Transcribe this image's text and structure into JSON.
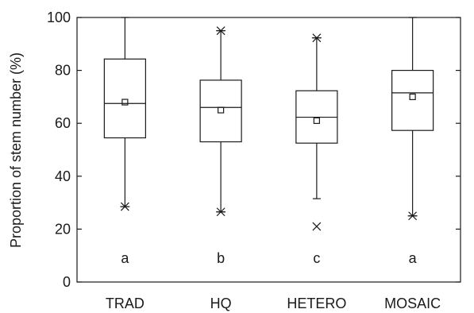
{
  "chart_data": {
    "type": "box",
    "ylabel": "Proportion of stem number (%)",
    "xlabel": "",
    "title": "",
    "ylim": [
      0,
      100
    ],
    "yticks": [
      "0",
      "20",
      "40",
      "60",
      "80",
      "100"
    ],
    "categories": [
      "TRAD",
      "HQ",
      "HETERO",
      "MOSAIC"
    ],
    "boxes": [
      {
        "category": "TRAD",
        "whisker_low": 28.5,
        "q1": 54.5,
        "median": 67.5,
        "q3": 84.3,
        "whisker_high": 100,
        "mean": 68,
        "outliers": [
          {
            "value": 28.5,
            "marker": "asterisk"
          }
        ],
        "letter": "a"
      },
      {
        "category": "HQ",
        "whisker_low": 26.5,
        "q1": 53,
        "median": 66,
        "q3": 76.3,
        "whisker_high": 95,
        "mean": 65,
        "outliers": [
          {
            "value": 26.5,
            "marker": "asterisk"
          },
          {
            "value": 95,
            "marker": "asterisk"
          }
        ],
        "letter": "b"
      },
      {
        "category": "HETERO",
        "whisker_low": 31.5,
        "q1": 52.5,
        "median": 62.3,
        "q3": 72.3,
        "whisker_high": 92.3,
        "mean": 61,
        "outliers": [
          {
            "value": 92.3,
            "marker": "asterisk"
          },
          {
            "value": 21,
            "marker": "cross"
          }
        ],
        "letter": "c"
      },
      {
        "category": "MOSAIC",
        "whisker_low": 25,
        "q1": 57.3,
        "median": 71.5,
        "q3": 80,
        "whisker_high": 100,
        "mean": 70,
        "outliers": [
          {
            "value": 25,
            "marker": "asterisk"
          }
        ],
        "letter": "a"
      }
    ],
    "grid": false,
    "legend": "none"
  }
}
